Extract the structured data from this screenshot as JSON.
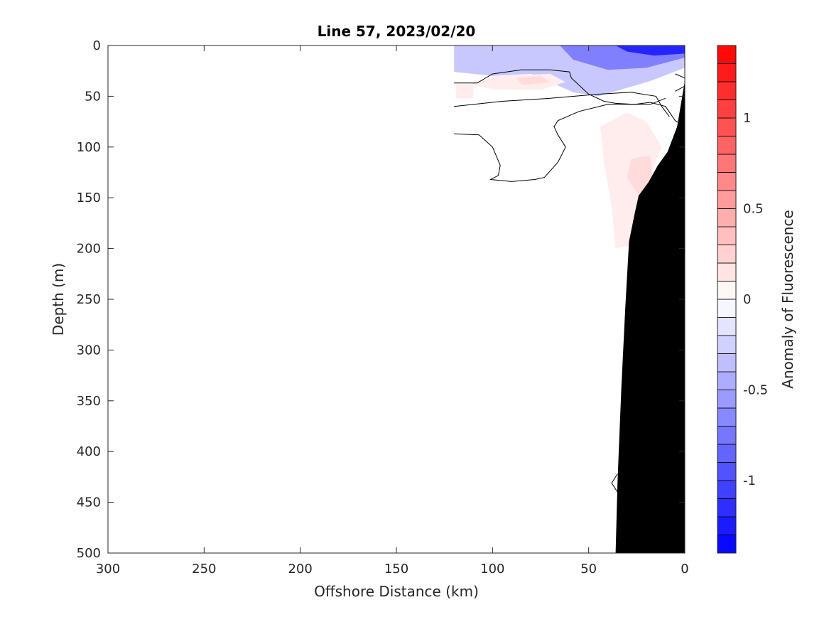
{
  "chart_data": {
    "type": "heatmap",
    "title": "Line 57, 2023/02/20",
    "xlabel": "Offshore Distance (km)",
    "ylabel": "Depth (m)",
    "xlim": [
      300,
      0
    ],
    "ylim": [
      0,
      500
    ],
    "x_reversed": true,
    "y_reversed": true,
    "x_ticks": [
      300,
      250,
      200,
      150,
      100,
      50,
      0
    ],
    "y_ticks": [
      0,
      50,
      100,
      150,
      200,
      250,
      300,
      350,
      400,
      450,
      500
    ],
    "grid": false,
    "colorbar": {
      "label": "Anomaly of Fluorescence",
      "clim": [
        -1.4,
        1.4
      ],
      "levels": [
        -1.4,
        -1.3,
        -1.2,
        -1.1,
        -1.0,
        -0.9,
        -0.8,
        -0.7,
        -0.6,
        -0.5,
        -0.4,
        -0.3,
        -0.2,
        -0.1,
        0,
        0.1,
        0.2,
        0.3,
        0.4,
        0.5,
        0.6,
        0.7,
        0.8,
        0.9,
        1.0,
        1.1,
        1.2,
        1.3,
        1.4
      ],
      "ticks": [
        -1,
        -0.5,
        0,
        0.5,
        1
      ],
      "colormap": "blue-white-red",
      "low_color": "#0000ff",
      "high_color": "#ff0000"
    },
    "field_regions": [
      {
        "value": -0.3,
        "outline": [
          [
            120,
            0
          ],
          [
            0,
            0
          ],
          [
            0,
            22
          ],
          [
            18,
            35
          ],
          [
            45,
            50
          ],
          [
            58,
            46
          ],
          [
            80,
            28
          ],
          [
            100,
            30
          ],
          [
            120,
            26
          ]
        ]
      },
      {
        "value": -0.7,
        "outline": [
          [
            65,
            0
          ],
          [
            0,
            0
          ],
          [
            0,
            12
          ],
          [
            20,
            22
          ],
          [
            40,
            24
          ],
          [
            58,
            14
          ]
        ]
      },
      {
        "value": -1.2,
        "outline": [
          [
            36,
            0
          ],
          [
            0,
            0
          ],
          [
            0,
            8
          ],
          [
            16,
            10
          ],
          [
            30,
            6
          ]
        ]
      },
      {
        "value": 0.1,
        "outline": [
          [
            112,
            38
          ],
          [
            98,
            30
          ],
          [
            70,
            28
          ],
          [
            62,
            36
          ],
          [
            75,
            44
          ],
          [
            100,
            43
          ]
        ]
      },
      {
        "value": 0.2,
        "outline": [
          [
            88,
            32
          ],
          [
            75,
            30
          ],
          [
            70,
            36
          ],
          [
            84,
            39
          ]
        ]
      },
      {
        "value": 0.1,
        "outline": [
          [
            44,
            80
          ],
          [
            30,
            66
          ],
          [
            20,
            75
          ],
          [
            12,
            100
          ],
          [
            22,
            148
          ],
          [
            24,
            195
          ],
          [
            36,
            200
          ],
          [
            38,
            160
          ],
          [
            42,
            115
          ]
        ]
      },
      {
        "value": 0.2,
        "outline": [
          [
            28,
            112
          ],
          [
            18,
            108
          ],
          [
            16,
            140
          ],
          [
            24,
            148
          ],
          [
            30,
            130
          ]
        ]
      },
      {
        "value": 0.1,
        "outline": [
          [
            119,
            38
          ],
          [
            110,
            38
          ],
          [
            110,
            52
          ],
          [
            119,
            52
          ]
        ]
      }
    ],
    "zero_contours": [
      {
        "points": [
          [
            120,
            37
          ],
          [
            108,
            37
          ],
          [
            100,
            28
          ],
          [
            85,
            24
          ],
          [
            70,
            24
          ],
          [
            60,
            26
          ],
          [
            59,
            32
          ],
          [
            50,
            48
          ],
          [
            42,
            55
          ],
          [
            36,
            57
          ],
          [
            26,
            58
          ],
          [
            18,
            56
          ],
          [
            10,
            60
          ],
          [
            5,
            74
          ],
          [
            0,
            80
          ]
        ]
      },
      {
        "points": [
          [
            120,
            60
          ],
          [
            95,
            55
          ],
          [
            70,
            52
          ],
          [
            45,
            48
          ],
          [
            28,
            46
          ],
          [
            15,
            50
          ],
          [
            12,
            60
          ],
          [
            8,
            70
          ]
        ]
      },
      {
        "points": [
          [
            120,
            87
          ],
          [
            107,
            88
          ],
          [
            100,
            100
          ],
          [
            96,
            118
          ],
          [
            97,
            128
          ],
          [
            101,
            132
          ],
          [
            90,
            134
          ],
          [
            78,
            132
          ],
          [
            73,
            130
          ],
          [
            66,
            115
          ],
          [
            62,
            100
          ],
          [
            66,
            88
          ],
          [
            68,
            80
          ],
          [
            66,
            74
          ],
          [
            55,
            65
          ],
          [
            40,
            58
          ],
          [
            18,
            58
          ],
          [
            10,
            52
          ]
        ]
      },
      {
        "points": [
          [
            5,
            28
          ],
          [
            0,
            32
          ],
          [
            0,
            40
          ],
          [
            5,
            45
          ]
        ]
      },
      {
        "points": [
          [
            35,
            422
          ],
          [
            38,
            431
          ],
          [
            35,
            440
          ]
        ]
      }
    ],
    "bathymetry": {
      "color": "#000000",
      "outline": [
        [
          0,
          35
        ],
        [
          4,
          80
        ],
        [
          9,
          105
        ],
        [
          14,
          118
        ],
        [
          19,
          135
        ],
        [
          24,
          148
        ],
        [
          26,
          165
        ],
        [
          29,
          193
        ],
        [
          31,
          260
        ],
        [
          33,
          337
        ],
        [
          35,
          430
        ],
        [
          36,
          500
        ],
        [
          0,
          500
        ]
      ]
    }
  }
}
